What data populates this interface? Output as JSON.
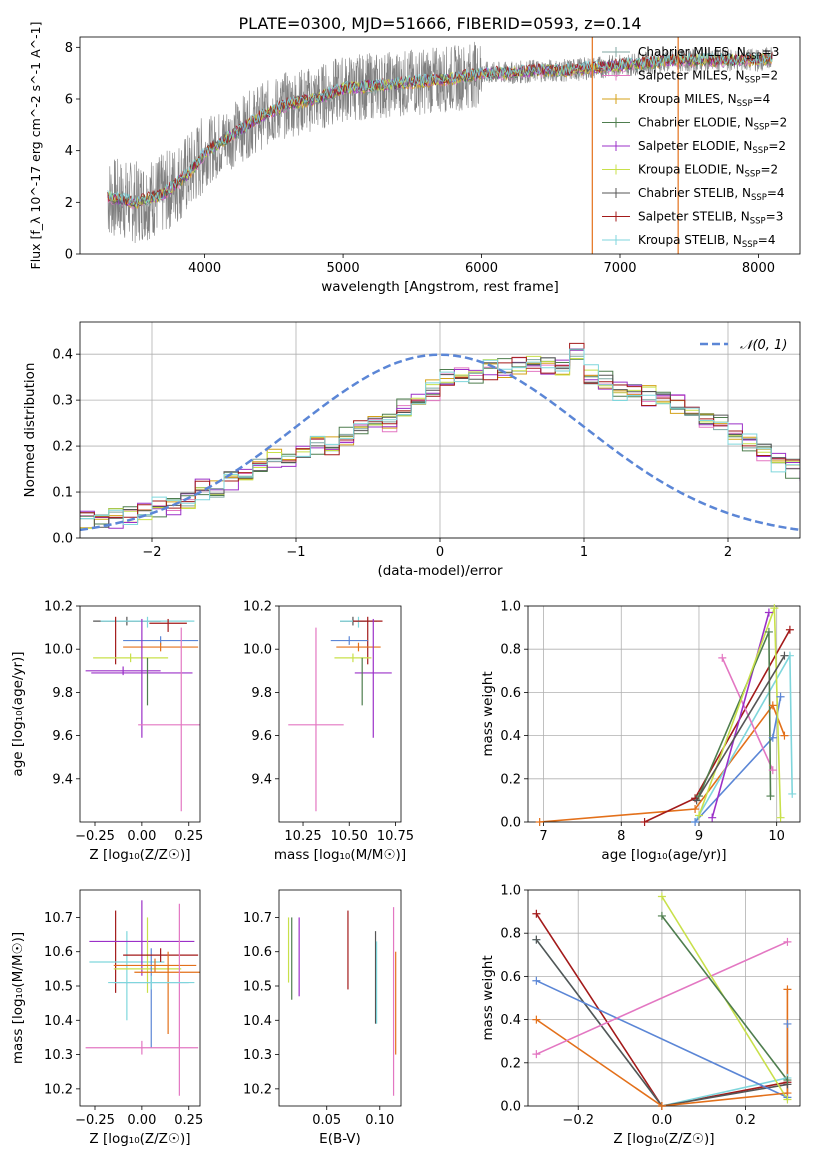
{
  "figure_title": "PLATE=0300, MJD=51666, FIBERID=0593, z=0.14",
  "colors": {
    "Chabrier MILES": "#7fa6a0",
    "Salpeter MILES": "#e377c2",
    "Kroupa MILES": "#d4a017",
    "Chabrier ELODIE": "#4e7d4e",
    "Salpeter ELODIE": "#9b30c8",
    "Kroupa ELODIE": "#c8e04a",
    "Chabrier STELIB": "#555555",
    "Salpeter STELIB": "#a31a1a",
    "Kroupa STELIB": "#7fd6dc",
    "orange": "#e3701a",
    "blue": "#5b86d6",
    "data": "#808080"
  },
  "chart_data": [
    {
      "type": "line",
      "id": "spectrum",
      "title": "PLATE=0300, MJD=51666, FIBERID=0593, z=0.14",
      "xlabel": "wavelength [Angstrom, rest frame]",
      "ylabel": "Flux [f_λ 10^-17 erg cm^-2 s^-1 A^-1]",
      "xlim": [
        3100,
        8300
      ],
      "ylim": [
        0,
        8.4
      ],
      "xticks": [
        4000,
        5000,
        6000,
        7000,
        8000
      ],
      "yticks": [
        0,
        2,
        4,
        6,
        8
      ],
      "legend_position": "top-right",
      "continuum_x": [
        3300,
        3500,
        3700,
        3900,
        4000,
        4200,
        4400,
        4600,
        4800,
        5000,
        5200,
        5400,
        5600,
        5800,
        6000,
        6200,
        6400,
        6600,
        6800,
        7000,
        7200,
        7400,
        7600,
        7800,
        8000,
        8100
      ],
      "continuum_y": [
        2.2,
        2.0,
        2.3,
        3.2,
        3.9,
        4.6,
        5.3,
        5.8,
        6.0,
        6.4,
        6.5,
        6.6,
        6.7,
        6.8,
        7.0,
        7.0,
        7.1,
        7.1,
        7.2,
        7.3,
        7.4,
        7.5,
        7.5,
        7.5,
        7.5,
        7.6
      ],
      "legend": [
        {
          "label": "Chabrier MILES, N",
          "sub": "SSP",
          "eq": "=3"
        },
        {
          "label": "Salpeter MILES, N",
          "sub": "SSP",
          "eq": "=2"
        },
        {
          "label": "Kroupa MILES, N",
          "sub": "SSP",
          "eq": "=4"
        },
        {
          "label": "Chabrier ELODIE, N",
          "sub": "SSP",
          "eq": "=2"
        },
        {
          "label": "Salpeter ELODIE, N",
          "sub": "SSP",
          "eq": "=2"
        },
        {
          "label": "Kroupa ELODIE, N",
          "sub": "SSP",
          "eq": "=2"
        },
        {
          "label": "Chabrier STELIB, N",
          "sub": "SSP",
          "eq": "=4"
        },
        {
          "label": "Salpeter STELIB, N",
          "sub": "SSP",
          "eq": "=3"
        },
        {
          "label": "Kroupa STELIB, N",
          "sub": "SSP",
          "eq": "=4"
        }
      ],
      "vertical_lines": [
        {
          "x": 6800,
          "color": "orange"
        },
        {
          "x": 7420,
          "color": "orange"
        }
      ]
    },
    {
      "type": "line",
      "id": "residuals",
      "xlabel": "(data-model)/error",
      "ylabel": "Normed distribution",
      "xlim": [
        -2.5,
        2.5
      ],
      "ylim": [
        0,
        0.47
      ],
      "xticks": [
        -2,
        -1,
        0,
        1,
        2
      ],
      "yticks": [
        0.0,
        0.1,
        0.2,
        0.3,
        0.4
      ],
      "grid": true,
      "legend_position": "top-right",
      "legend_label": "𝒩(0, 1)",
      "reference_curve": "gaussian, mean 0, sigma 1, dashed",
      "bin_width": 0.1,
      "bin_start": -2.5,
      "histogram_base": [
        0.04,
        0.04,
        0.05,
        0.05,
        0.06,
        0.07,
        0.07,
        0.08,
        0.1,
        0.1,
        0.13,
        0.14,
        0.16,
        0.17,
        0.17,
        0.19,
        0.2,
        0.2,
        0.22,
        0.24,
        0.25,
        0.25,
        0.28,
        0.3,
        0.32,
        0.35,
        0.35,
        0.36,
        0.37,
        0.37,
        0.37,
        0.38,
        0.38,
        0.37,
        0.4,
        0.35,
        0.34,
        0.32,
        0.32,
        0.31,
        0.3,
        0.29,
        0.27,
        0.26,
        0.25,
        0.22,
        0.21,
        0.19,
        0.17,
        0.16,
        0.15,
        0.13,
        0.11,
        0.1,
        0.09,
        0.09,
        0.07,
        0.06,
        0.05,
        0.04,
        0.04,
        0.04,
        0.03,
        0.03,
        0.02,
        0.02,
        0.02,
        0.02,
        0.02,
        0.02,
        0.02
      ],
      "series_offsets": [
        0.0,
        0.012,
        -0.01,
        0.018,
        -0.016,
        0.008,
        -0.004,
        0.014,
        -0.012
      ]
    },
    {
      "type": "scatter",
      "id": "age-vs-Z",
      "xlabel": "Z [log₁₀(Z/Z☉)]",
      "ylabel": "age  [log₁₀(age/yr)]",
      "xlim": [
        -0.33,
        0.31
      ],
      "ylim": [
        9.2,
        10.2
      ],
      "xticks": [
        -0.25,
        0.0,
        0.25
      ],
      "xticklabels": [
        "−0.25",
        "0.00",
        "0.25"
      ],
      "yticks": [
        9.4,
        9.6,
        9.8,
        10.0,
        10.2
      ],
      "points": [
        {
          "x": -0.08,
          "y": 10.13,
          "xerr": 0.18,
          "yerr": [
            0.02,
            0.02
          ],
          "color": "Chabrier STELIB"
        },
        {
          "x": 0.03,
          "y": 10.13,
          "xerr": 0.25,
          "yerr": [
            0.03,
            0.02
          ],
          "color": "Kroupa STELIB"
        },
        {
          "x": -0.14,
          "y": 10.13,
          "xerr": 0.0,
          "yerr": [
            0.2,
            0.02
          ],
          "color": "Salpeter STELIB"
        },
        {
          "x": 0.14,
          "y": 10.12,
          "xerr": 0.1,
          "yerr": [
            0.04,
            0.02
          ],
          "color": "Salpeter STELIB"
        },
        {
          "x": 0.1,
          "y": 10.04,
          "xerr": 0.2,
          "yerr": [
            0.02,
            0.02
          ],
          "color": "blue"
        },
        {
          "x": 0.1,
          "y": 10.01,
          "xerr": 0.2,
          "yerr": [
            0.02,
            0.02
          ],
          "color": "orange"
        },
        {
          "x": -0.06,
          "y": 9.96,
          "xerr": 0.2,
          "yerr": [
            0.02,
            0.02
          ],
          "color": "Kroupa ELODIE"
        },
        {
          "x": -0.1,
          "y": 9.9,
          "xerr": 0.2,
          "yerr": [
            0.02,
            0.02
          ],
          "color": "Salpeter ELODIE"
        },
        {
          "x": 0.0,
          "y": 9.89,
          "xerr": 0.27,
          "yerr": [
            0.3,
            0.25
          ],
          "color": "Salpeter ELODIE"
        },
        {
          "x": 0.03,
          "y": 9.9,
          "xerr": 0.0,
          "yerr": [
            0.16,
            0.06
          ],
          "color": "Chabrier ELODIE"
        },
        {
          "x": 0.21,
          "y": 9.65,
          "xerr": 0.23,
          "yerr": [
            0.4,
            0.45
          ],
          "color": "Salpeter MILES"
        }
      ]
    },
    {
      "type": "scatter",
      "id": "age-vs-mass",
      "xlabel": "mass [log₁₀(M/M☉)]",
      "ylabel": "",
      "xlim": [
        10.12,
        10.78
      ],
      "ylim": [
        9.2,
        10.2
      ],
      "xticks": [
        10.25,
        10.5,
        10.75
      ],
      "xticklabels": [
        "10.25",
        "10.50",
        "10.75"
      ],
      "yticks": [
        9.4,
        9.6,
        9.8,
        10.0,
        10.2
      ],
      "points": [
        {
          "x": 10.52,
          "y": 10.13,
          "xerr": 0.07,
          "yerr": [
            0.02,
            0.02
          ],
          "color": "Chabrier STELIB"
        },
        {
          "x": 10.55,
          "y": 10.13,
          "xerr": 0.1,
          "yerr": [
            0.03,
            0.02
          ],
          "color": "Kroupa STELIB"
        },
        {
          "x": 10.6,
          "y": 10.13,
          "xerr": 0.08,
          "yerr": [
            0.2,
            0.02
          ],
          "color": "Salpeter STELIB"
        },
        {
          "x": 10.5,
          "y": 10.04,
          "xerr": 0.1,
          "yerr": [
            0.02,
            0.02
          ],
          "color": "blue"
        },
        {
          "x": 10.55,
          "y": 10.01,
          "xerr": 0.12,
          "yerr": [
            0.02,
            0.02
          ],
          "color": "orange"
        },
        {
          "x": 10.52,
          "y": 9.96,
          "xerr": 0.1,
          "yerr": [
            0.02,
            0.02
          ],
          "color": "Kroupa ELODIE"
        },
        {
          "x": 10.63,
          "y": 9.89,
          "xerr": 0.1,
          "yerr": [
            0.3,
            0.25
          ],
          "color": "Salpeter ELODIE"
        },
        {
          "x": 10.57,
          "y": 9.9,
          "xerr": 0.0,
          "yerr": [
            0.16,
            0.06
          ],
          "color": "Chabrier ELODIE"
        },
        {
          "x": 10.32,
          "y": 9.65,
          "xerr": 0.15,
          "yerr": [
            0.4,
            0.45
          ],
          "color": "Salpeter MILES"
        }
      ]
    },
    {
      "type": "line",
      "id": "weight-vs-age",
      "xlabel": "age  [log₁₀(age/yr)]",
      "ylabel": "mass weight",
      "xlim": [
        6.8,
        10.3
      ],
      "ylim": [
        0,
        1.0
      ],
      "xticks": [
        7,
        8,
        9,
        10
      ],
      "yticks": [
        0.0,
        0.2,
        0.4,
        0.6,
        0.8,
        1.0
      ],
      "grid": true,
      "series": [
        {
          "color": "orange",
          "x": [
            6.95,
            8.95,
            9.95,
            10.1
          ],
          "y": [
            0.0,
            0.06,
            0.54,
            0.4
          ]
        },
        {
          "color": "Salpeter STELIB",
          "x": [
            8.3,
            8.95,
            10.17
          ],
          "y": [
            0.0,
            0.11,
            0.89
          ]
        },
        {
          "color": "Kroupa STELIB",
          "x": [
            8.95,
            10.17,
            10.2
          ],
          "y": [
            0.0,
            0.77,
            0.13
          ]
        },
        {
          "color": "blue",
          "x": [
            8.95,
            9.95,
            10.05
          ],
          "y": [
            0.0,
            0.39,
            0.58
          ]
        },
        {
          "color": "Salpeter MILES",
          "x": [
            9.3,
            9.95
          ],
          "y": [
            0.76,
            0.24
          ]
        },
        {
          "color": "Salpeter ELODIE",
          "x": [
            9.17,
            9.9
          ],
          "y": [
            0.02,
            0.97
          ]
        },
        {
          "color": "Chabrier ELODIE",
          "x": [
            9.0,
            9.9,
            9.92
          ],
          "y": [
            0.12,
            0.88,
            0.12
          ]
        },
        {
          "color": "Kroupa ELODIE",
          "x": [
            9.0,
            9.97,
            10.05
          ],
          "y": [
            0.03,
            0.99,
            0.02
          ]
        },
        {
          "color": "Chabrier STELIB",
          "x": [
            8.97,
            10.1
          ],
          "y": [
            0.1,
            0.77
          ]
        }
      ]
    },
    {
      "type": "scatter",
      "id": "mass-vs-Z",
      "xlabel": "Z [log₁₀(Z/Z☉)]",
      "ylabel": "mass [log₁₀(M/M☉)]",
      "xlim": [
        -0.33,
        0.31
      ],
      "ylim": [
        10.15,
        10.78
      ],
      "xticks": [
        -0.25,
        0.0,
        0.25
      ],
      "xticklabels": [
        "−0.25",
        "0.00",
        "0.25"
      ],
      "yticks": [
        10.2,
        10.3,
        10.4,
        10.5,
        10.6,
        10.7
      ],
      "points": [
        {
          "x": -0.14,
          "y": 10.59,
          "xerr": 0.0,
          "yerr": [
            0.11,
            0.13
          ],
          "color": "Salpeter STELIB"
        },
        {
          "x": -0.08,
          "y": 10.57,
          "xerr": 0.2,
          "yerr": [
            0.17,
            0.09
          ],
          "color": "Kroupa STELIB"
        },
        {
          "x": 0.0,
          "y": 10.63,
          "xerr": 0.28,
          "yerr": [
            0.1,
            0.12
          ],
          "color": "Salpeter ELODIE"
        },
        {
          "x": 0.03,
          "y": 10.55,
          "xerr": 0.18,
          "yerr": [
            0.07,
            0.15
          ],
          "color": "Kroupa ELODIE"
        },
        {
          "x": 0.05,
          "y": 10.51,
          "xerr": 0.2,
          "yerr": [
            0.19,
            0.1
          ],
          "color": "blue"
        },
        {
          "x": 0.1,
          "y": 10.59,
          "xerr": 0.2,
          "yerr": [
            0.02,
            0.02
          ],
          "color": "Salpeter STELIB"
        },
        {
          "x": 0.07,
          "y": 10.56,
          "xerr": 0.22,
          "yerr": [
            0.02,
            0.02
          ],
          "color": "orange"
        },
        {
          "x": 0.14,
          "y": 10.54,
          "xerr": 0.18,
          "yerr": [
            0.18,
            0.06
          ],
          "color": "orange"
        },
        {
          "x": 0.2,
          "y": 10.5,
          "xerr": 0.0,
          "yerr": [
            0.32,
            0.24
          ],
          "color": "Salpeter MILES"
        },
        {
          "x": 0.0,
          "y": 10.32,
          "xerr": 0.3,
          "yerr": [
            0.02,
            0.02
          ],
          "color": "Salpeter MILES"
        },
        {
          "x": 0.05,
          "y": 10.51,
          "xerr": 0.23,
          "yerr": [
            0.02,
            0.02
          ],
          "color": "Kroupa STELIB"
        }
      ]
    },
    {
      "type": "scatter",
      "id": "mass-vs-ebv",
      "xlabel": "E(B-V)",
      "ylabel": "",
      "xlim": [
        0.005,
        0.12
      ],
      "ylim": [
        10.15,
        10.78
      ],
      "xticks": [
        0.05,
        0.1
      ],
      "xticklabels": [
        "0.05",
        "0.10"
      ],
      "yticks": [
        10.2,
        10.3,
        10.4,
        10.5,
        10.6,
        10.7
      ],
      "points": [
        {
          "x": 0.014,
          "y": 10.6,
          "xerr": 0.0,
          "yerr": [
            0.09,
            0.1
          ],
          "color": "Kroupa ELODIE"
        },
        {
          "x": 0.017,
          "y": 10.58,
          "xerr": 0.0,
          "yerr": [
            0.12,
            0.12
          ],
          "color": "Chabrier ELODIE"
        },
        {
          "x": 0.024,
          "y": 10.6,
          "xerr": 0.0,
          "yerr": [
            0.13,
            0.1
          ],
          "color": "Salpeter ELODIE"
        },
        {
          "x": 0.07,
          "y": 10.6,
          "xerr": 0.0,
          "yerr": [
            0.11,
            0.12
          ],
          "color": "Salpeter STELIB"
        },
        {
          "x": 0.096,
          "y": 10.57,
          "xerr": 0.0,
          "yerr": [
            0.18,
            0.09
          ],
          "color": "Chabrier STELIB"
        },
        {
          "x": 0.097,
          "y": 10.55,
          "xerr": 0.0,
          "yerr": [
            0.16,
            0.08
          ],
          "color": "Kroupa STELIB"
        },
        {
          "x": 0.113,
          "y": 10.55,
          "xerr": 0.0,
          "yerr": [
            0.37,
            0.18
          ],
          "color": "Salpeter MILES"
        },
        {
          "x": 0.115,
          "y": 10.5,
          "xerr": 0.0,
          "yerr": [
            0.2,
            0.1
          ],
          "color": "orange"
        }
      ]
    },
    {
      "type": "line",
      "id": "weight-vs-Z",
      "xlabel": "Z [log₁₀(Z/Z☉)]",
      "ylabel": "mass weight",
      "xlim": [
        -0.32,
        0.33
      ],
      "ylim": [
        0,
        1.0
      ],
      "xticks": [
        -0.2,
        0.0,
        0.2
      ],
      "xticklabels": [
        "−0.2",
        "0.0",
        "0.2"
      ],
      "yticks": [
        0.0,
        0.2,
        0.4,
        0.6,
        0.8,
        1.0
      ],
      "grid": true,
      "series": [
        {
          "color": "Salpeter STELIB",
          "x": [
            -0.3,
            0.0,
            0.3
          ],
          "y": [
            0.89,
            0.0,
            0.11
          ]
        },
        {
          "color": "Kroupa STELIB",
          "x": [
            -0.3,
            0.0,
            0.3
          ],
          "y": [
            0.77,
            0.0,
            0.13
          ]
        },
        {
          "color": "Chabrier STELIB",
          "x": [
            -0.3,
            0.0,
            0.3
          ],
          "y": [
            0.77,
            0.0,
            0.1
          ]
        },
        {
          "color": "blue",
          "x": [
            -0.3,
            0.3,
            0.3
          ],
          "y": [
            0.58,
            0.04,
            0.38
          ]
        },
        {
          "color": "orange",
          "x": [
            -0.3,
            0.0,
            0.3,
            0.3
          ],
          "y": [
            0.4,
            0.0,
            0.06,
            0.54
          ]
        },
        {
          "color": "Salpeter MILES",
          "x": [
            -0.3,
            0.3
          ],
          "y": [
            0.24,
            0.76
          ]
        },
        {
          "color": "Kroupa ELODIE",
          "x": [
            0.0,
            0.3
          ],
          "y": [
            0.97,
            0.03
          ]
        },
        {
          "color": "Chabrier ELODIE",
          "x": [
            0.0,
            0.3
          ],
          "y": [
            0.88,
            0.12
          ]
        }
      ]
    }
  ]
}
